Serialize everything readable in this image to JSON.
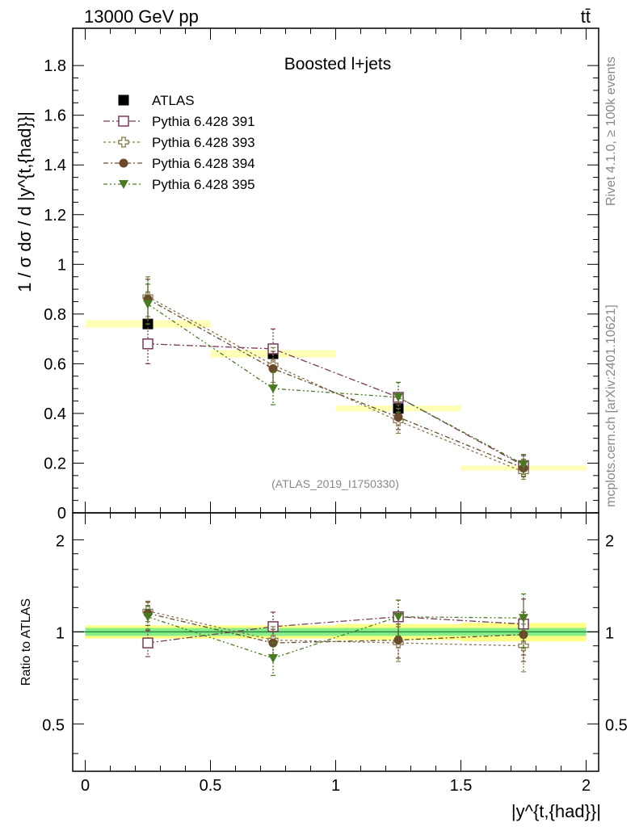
{
  "header": {
    "energy_label": "13000 GeV pp",
    "process_label": "tt̄"
  },
  "side_text": {
    "rivet": "Rivet 4.1.0, ≥ 100k events",
    "source": "mcplots.cern.ch [arXiv:2401.10621]"
  },
  "colors": {
    "ATLAS": "#000000",
    "p391": "#7a3a5a",
    "p393": "#8a7a50",
    "p394": "#6a4a2a",
    "p395": "#4a7a20",
    "band_inner": "#88ee88",
    "band_outer": "#ffff88",
    "ref_line": "#2a8a4a"
  },
  "chart_data": [
    {
      "type": "scatter",
      "panel": "main",
      "title": "Boosted l+jets",
      "watermark": "(ATLAS_2019_I1750330)",
      "ylabel": "1 / σ dσ / d |y^{t,{had}}|",
      "xlim": [
        -0.05,
        2.05
      ],
      "ylim": [
        0,
        1.95
      ],
      "yticks": [
        0,
        0.2,
        0.4,
        0.6,
        0.8,
        1,
        1.2,
        1.4,
        1.6,
        1.8
      ],
      "ytick_labels": [
        "0",
        "0.2",
        "0.4",
        "0.6",
        "0.8",
        "1",
        "1.2",
        "1.4",
        "1.6",
        "1.8"
      ],
      "x": [
        0.25,
        0.75,
        1.25,
        1.75
      ],
      "legend_position": "top-left",
      "series": [
        {
          "name": "ATLAS",
          "key": "ATLAS",
          "values": [
            0.76,
            0.64,
            0.42,
            0.18
          ],
          "err": [
            0.015,
            0.015,
            0.012,
            0.01
          ],
          "marker": "square-filled"
        },
        {
          "name": "Pythia 6.428 391",
          "key": "p391",
          "values": [
            0.68,
            0.66,
            0.465,
            0.19
          ],
          "err": [
            0.08,
            0.08,
            0.06,
            0.04
          ],
          "marker": "square-open",
          "dash": "8,3,2,3"
        },
        {
          "name": "Pythia 6.428 393",
          "key": "p393",
          "values": [
            0.87,
            0.595,
            0.37,
            0.165
          ],
          "err": [
            0.08,
            0.07,
            0.05,
            0.03
          ],
          "marker": "cross-open",
          "dash": "3,3"
        },
        {
          "name": "Pythia 6.428 394",
          "key": "p394",
          "values": [
            0.86,
            0.58,
            0.385,
            0.18
          ],
          "err": [
            0.08,
            0.07,
            0.05,
            0.035
          ],
          "marker": "circle-filled",
          "dash": "6,3,2,3"
        },
        {
          "name": "Pythia 6.428 395",
          "key": "p395",
          "values": [
            0.84,
            0.5,
            0.465,
            0.195
          ],
          "err": [
            0.08,
            0.065,
            0.06,
            0.04
          ],
          "marker": "triangle-down",
          "dash": "5,3,2,3,2,3"
        }
      ]
    },
    {
      "type": "scatter",
      "panel": "ratio",
      "ylabel": "Ratio to ATLAS",
      "xlabel": "|y^{t,{had}}|",
      "xlim": [
        -0.05,
        2.05
      ],
      "ylim": [
        0.35,
        2.45
      ],
      "yticks": [
        0.5,
        1,
        2
      ],
      "ytick_labels": [
        "0.5",
        "1",
        "2"
      ],
      "xticks": [
        0,
        0.5,
        1,
        1.5,
        2
      ],
      "xtick_labels": [
        "0",
        "0.5",
        "1",
        "1.5",
        "2"
      ],
      "x": [
        0.25,
        0.75,
        1.25,
        1.75
      ],
      "reference_line": 1,
      "band": {
        "x": [
          0,
          2
        ],
        "inner_low": [
          0.97,
          0.97,
          0.97,
          0.97
        ],
        "inner_high": [
          1.03,
          1.03,
          1.03,
          1.03
        ],
        "outer_low": [
          0.95,
          0.95,
          0.94,
          0.93
        ],
        "outer_high": [
          1.05,
          1.05,
          1.06,
          1.07
        ]
      },
      "series": [
        {
          "name": "Pythia 6.428 391",
          "key": "p391",
          "values": [
            0.92,
            1.04,
            1.12,
            1.06
          ],
          "err": [
            0.09,
            0.12,
            0.15,
            0.22
          ],
          "marker": "square-open",
          "dash": "8,3,2,3"
        },
        {
          "name": "Pythia 6.428 393",
          "key": "p393",
          "values": [
            1.17,
            0.94,
            0.92,
            0.9
          ],
          "err": [
            0.09,
            0.1,
            0.12,
            0.16
          ],
          "marker": "cross-open",
          "dash": "3,3"
        },
        {
          "name": "Pythia 6.428 394",
          "key": "p394",
          "values": [
            1.15,
            0.92,
            0.94,
            0.98
          ],
          "err": [
            0.1,
            0.1,
            0.12,
            0.18
          ],
          "marker": "circle-filled",
          "dash": "6,3,2,3"
        },
        {
          "name": "Pythia 6.428 395",
          "key": "p395",
          "values": [
            1.12,
            0.82,
            1.12,
            1.11
          ],
          "err": [
            0.1,
            0.1,
            0.15,
            0.22
          ],
          "marker": "triangle-down",
          "dash": "5,3,2,3,2,3"
        }
      ]
    }
  ]
}
